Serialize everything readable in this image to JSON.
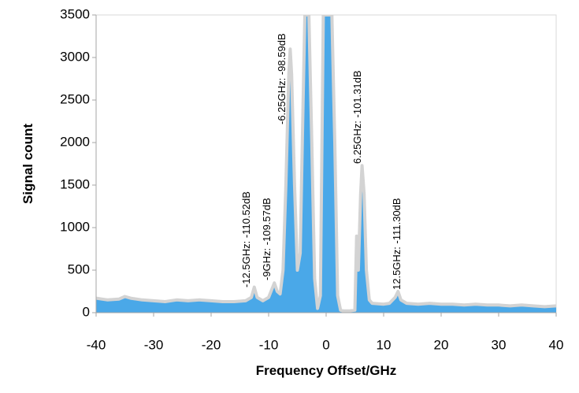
{
  "chart_data": {
    "type": "area",
    "x_label": "Frequency Offset/GHz",
    "y_label": "Signal count",
    "x": [
      -40,
      -38,
      -36,
      -35,
      -34,
      -32,
      -30,
      -28,
      -26,
      -24,
      -22,
      -20,
      -18,
      -16,
      -14,
      -13,
      -12.5,
      -12,
      -11,
      -10,
      -9,
      -8.5,
      -8,
      -7.5,
      -7,
      -6.5,
      -6.25,
      -6,
      -5.5,
      -5,
      -4.5,
      -4,
      -3.7,
      -3,
      -2.5,
      -2,
      -1.5,
      -1,
      -0.5,
      0,
      0.5,
      1,
      1.5,
      2,
      2.5,
      3,
      4,
      5,
      5.3,
      5.6,
      6,
      6.25,
      6.6,
      7,
      7.5,
      8,
      10,
      11,
      12,
      12.5,
      13,
      14,
      16,
      18,
      20,
      22,
      24,
      26,
      28,
      30,
      32,
      34,
      36,
      38,
      40
    ],
    "values": [
      170,
      150,
      160,
      190,
      170,
      150,
      140,
      130,
      150,
      140,
      150,
      140,
      130,
      130,
      140,
      180,
      300,
      180,
      140,
      180,
      350,
      250,
      220,
      500,
      1500,
      2800,
      3100,
      2800,
      1500,
      500,
      700,
      2500,
      3500,
      3500,
      2000,
      400,
      50,
      200,
      3500,
      3500,
      3500,
      3500,
      2000,
      200,
      30,
      20,
      20,
      30,
      900,
      500,
      1400,
      1730,
      1400,
      500,
      150,
      110,
      100,
      110,
      180,
      250,
      150,
      110,
      100,
      110,
      100,
      100,
      90,
      100,
      90,
      90,
      80,
      90,
      80,
      70,
      80
    ],
    "fill_color": "#4aa8e8",
    "line_color": "#d3d3d3",
    "xlim": [
      -40,
      40
    ],
    "xticks": [
      -40,
      -30,
      -20,
      -10,
      0,
      10,
      20,
      30,
      40
    ],
    "ylim": [
      0,
      3500
    ],
    "yticks": [
      0,
      500,
      1000,
      1500,
      2000,
      2500,
      3000,
      3500
    ],
    "annotations": [
      "-12.5GHz: -110.52dB",
      "-9GHz: -109.57dB",
      "-6.25GHz: -98.59dB",
      "6.25GHz: -101.31dB",
      "12.5GHz: -111.30dB"
    ]
  }
}
